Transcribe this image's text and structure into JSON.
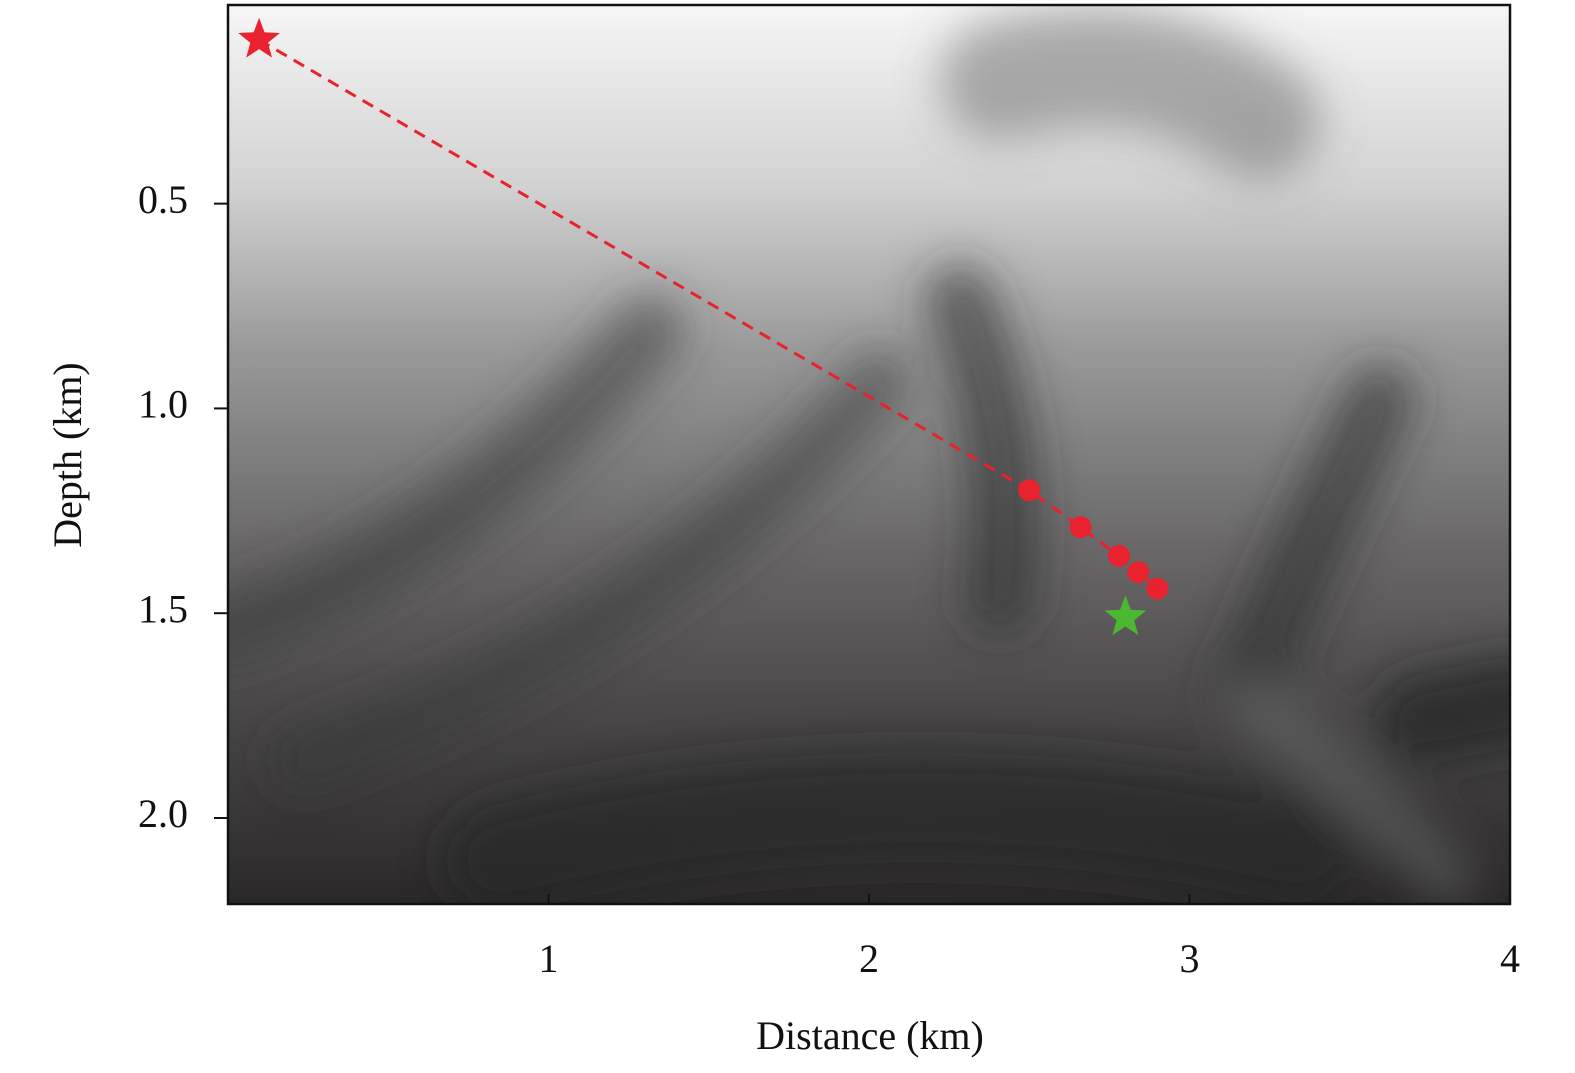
{
  "chart_data": {
    "type": "scatter",
    "xlabel": "Distance (km)",
    "ylabel": "Depth (km)",
    "xlim": [
      0,
      4
    ],
    "ylim": [
      0.015,
      2.21
    ],
    "y_inverted": true,
    "xticks": [
      1,
      2,
      3,
      4
    ],
    "yticks": [
      0.5,
      {
        "value": 1,
        "label": "1.0"
      },
      1.5,
      {
        "value": 2,
        "label": "2.0"
      }
    ],
    "series": [
      {
        "color": "#e8222e",
        "line": "dashed",
        "markers": [
          "star",
          "circle",
          "circle",
          "circle",
          "circle",
          "circle"
        ],
        "x": [
          0.097,
          2.5,
          2.66,
          2.78,
          2.84,
          2.9
        ],
        "values": [
          0.1,
          1.2,
          1.29,
          1.36,
          1.4,
          1.44
        ]
      },
      {
        "color": "#4cb832",
        "markers": [
          "star"
        ],
        "x": [
          2.8
        ],
        "values": [
          1.51
        ]
      }
    ]
  }
}
